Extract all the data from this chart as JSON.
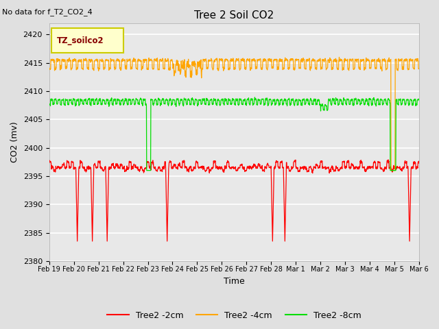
{
  "title": "Tree 2 Soil CO2",
  "top_left_text": "No data for f_T2_CO2_4",
  "ylabel": "CO2 (mv)",
  "xlabel": "Time",
  "legend_label": "TZ_soilco2",
  "ylim": [
    2380,
    2422
  ],
  "yticks": [
    2380,
    2385,
    2390,
    2395,
    2400,
    2405,
    2410,
    2415,
    2420
  ],
  "background_color": "#e0e0e0",
  "plot_bg_color": "#e8e8e8",
  "grid_color": "white",
  "line_red": "#ff0000",
  "line_orange": "#ffa500",
  "line_green": "#00dd00",
  "legend_items": [
    "Tree2 -2cm",
    "Tree2 -4cm",
    "Tree2 -8cm"
  ],
  "legend_colors": [
    "#ff0000",
    "#ffa500",
    "#00dd00"
  ],
  "xtick_labels": [
    "Feb 19",
    "Feb 20",
    "Feb 21",
    "Feb 22",
    "Feb 23",
    "Feb 24",
    "Feb 25",
    "Feb 26",
    "Feb 27",
    "Feb 28",
    "Mar 1",
    "Mar 2",
    "Mar 3",
    "Mar 4",
    "Mar 5",
    "Mar 6"
  ]
}
